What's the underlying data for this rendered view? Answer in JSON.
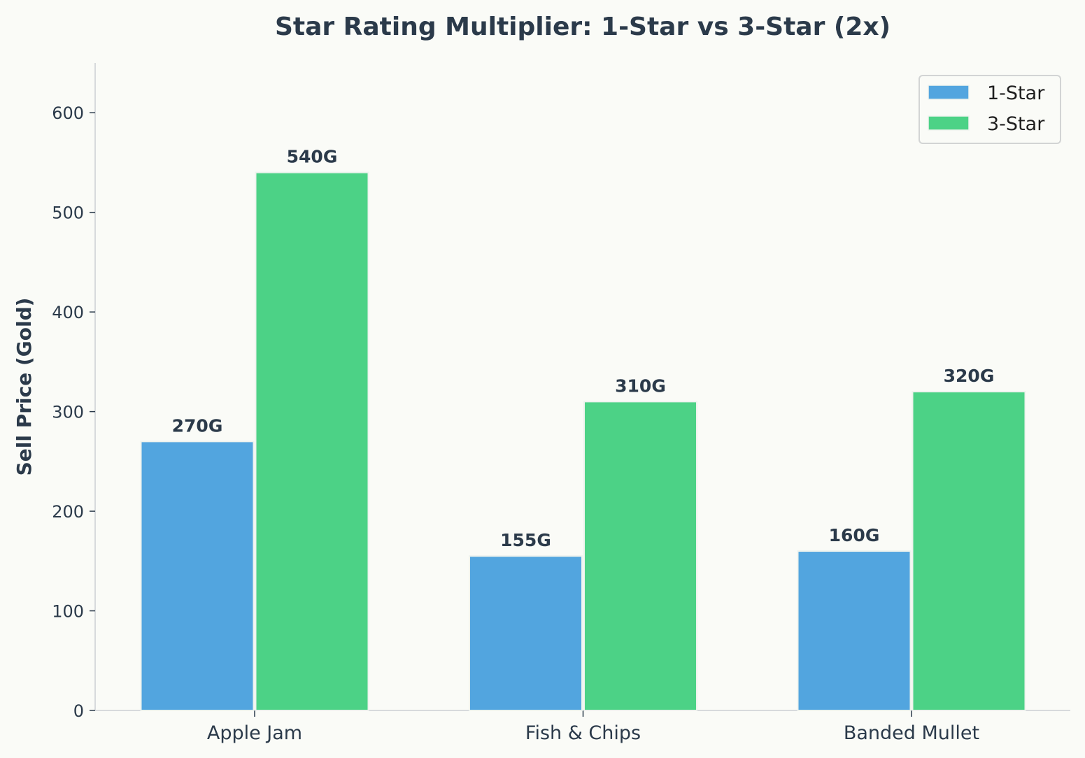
{
  "chart_data": {
    "type": "bar",
    "title": "Star Rating Multiplier: 1-Star vs 3-Star (2x)",
    "xlabel": "",
    "ylabel": "Sell Price (Gold)",
    "ylim": [
      0,
      650
    ],
    "yticks": [
      0,
      100,
      200,
      300,
      400,
      500,
      600
    ],
    "categories": [
      "Apple Jam",
      "Fish & Chips",
      "Banded Mullet"
    ],
    "series": [
      {
        "name": "1-Star",
        "values": [
          270,
          155,
          160
        ],
        "labels": [
          "270G",
          "155G",
          "160G"
        ],
        "color": "#52a5df"
      },
      {
        "name": "3-Star",
        "values": [
          540,
          310,
          320
        ],
        "labels": [
          "540G",
          "310G",
          "320G"
        ],
        "color": "#4cd286"
      }
    ],
    "legend_position": "top-right",
    "grid": false
  }
}
